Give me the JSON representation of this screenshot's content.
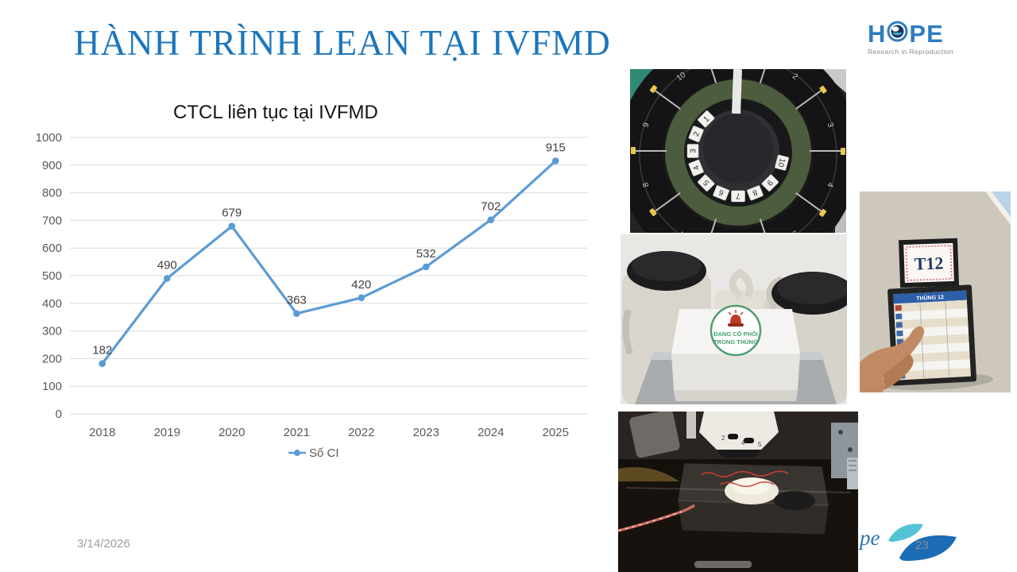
{
  "slide": {
    "title": "HÀNH TRÌNH LEAN TẠI IVFMD",
    "date": "3/14/2026",
    "page_number": "23",
    "script_signature_visible": "pe"
  },
  "logo": {
    "word_start": "H",
    "word_end": "PE",
    "tagline": "Research in Reproduction"
  },
  "chart_data": {
    "type": "line",
    "title": "CTCL liên tục tại IVFMD",
    "categories": [
      "2018",
      "2019",
      "2020",
      "2021",
      "2022",
      "2023",
      "2024",
      "2025"
    ],
    "series": [
      {
        "name": "Số CI",
        "color": "#5B9BD5",
        "values": [
          182,
          490,
          679,
          363,
          420,
          532,
          702,
          915
        ]
      }
    ],
    "ylim": [
      0,
      1000
    ],
    "ytick_step": 100,
    "grid": true,
    "legend_position": "bottom",
    "data_labels": true
  },
  "photos": {
    "cryo_carousel": {
      "position_tags": [
        "1",
        "2",
        "3",
        "4",
        "5",
        "6",
        "7",
        "8",
        "9",
        "10"
      ]
    },
    "embryo_box": {
      "label_line1": "ĐANG CÓ PHÔI",
      "label_line2": "TRONG THÙNG"
    },
    "tank_card": {
      "sign_label": "T12",
      "card_header": "THÙNG 12"
    },
    "microscope": {
      "turret_numbers": [
        "2",
        "4",
        "5"
      ]
    }
  },
  "colors": {
    "title_blue": "#1C76BD",
    "series_blue": "#5B9BD5",
    "grid_gray": "#D9D9D9",
    "tick_gray": "#595959",
    "leaf_teal": "#54C3D4",
    "leaf_blue": "#1B6CB5"
  }
}
